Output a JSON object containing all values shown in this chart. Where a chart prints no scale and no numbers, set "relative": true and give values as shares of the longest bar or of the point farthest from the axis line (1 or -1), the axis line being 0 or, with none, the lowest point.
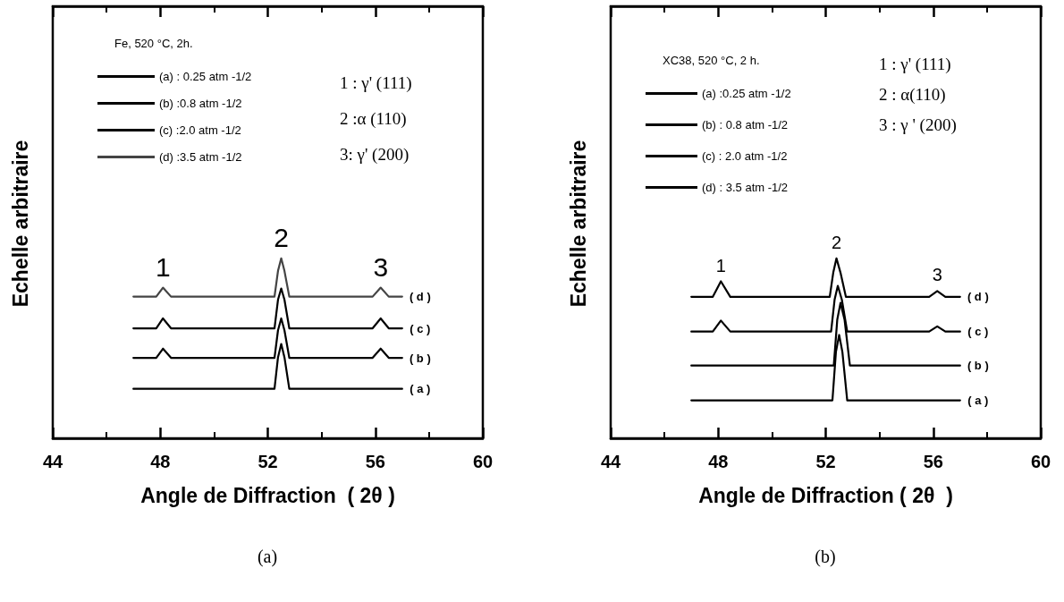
{
  "chart_data": [
    {
      "type": "line",
      "relative": true,
      "legend": "top left",
      "legend_title": "Fe, 520 °C, 2h.",
      "xlabel": "Angle de Diffraction  ( 2θ )",
      "ylabel": "Echelle arbitraire",
      "subtitle": "(a)",
      "xlim": [
        44,
        60
      ],
      "xticks": [
        44,
        48,
        52,
        56,
        60
      ],
      "series": [
        {
          "name": "(a) : 0.25 atm -1/2",
          "color": "#000000",
          "x": [
            47,
            52.25,
            52.38,
            52.5,
            52.62,
            52.8,
            57
          ],
          "values": [
            0.275,
            0.275,
            0.45,
            0.524,
            0.45,
            0.275,
            0.275
          ]
        },
        {
          "name": "(b) :0.8 atm -1/2",
          "color": "#000000",
          "x": [
            47,
            47.85,
            48.1,
            48.4,
            52.25,
            52.38,
            52.5,
            52.62,
            52.8,
            55.9,
            56.2,
            56.5,
            57
          ],
          "values": [
            0.447,
            0.447,
            0.498,
            0.447,
            0.447,
            0.6,
            0.666,
            0.6,
            0.447,
            0.447,
            0.498,
            0.447,
            0.447
          ]
        },
        {
          "name": "(c) :2.0 atm -1/2",
          "color": "#000000",
          "x": [
            47,
            47.85,
            48.1,
            48.4,
            52.25,
            52.38,
            52.5,
            52.62,
            52.8,
            55.9,
            56.2,
            56.5,
            57
          ],
          "values": [
            0.611,
            0.611,
            0.666,
            0.611,
            0.611,
            0.77,
            0.832,
            0.77,
            0.611,
            0.611,
            0.666,
            0.611,
            0.611
          ]
        },
        {
          "name": "(d) :3.5 atm -1/2",
          "color": "#444444",
          "x": [
            47,
            47.85,
            48.1,
            48.4,
            52.25,
            52.38,
            52.5,
            52.62,
            52.8,
            55.9,
            56.2,
            56.5,
            57
          ],
          "values": [
            0.787,
            0.787,
            0.837,
            0.787,
            0.787,
            0.93,
            1.0,
            0.93,
            0.787,
            0.787,
            0.837,
            0.787,
            0.787
          ]
        }
      ],
      "annotations": [
        "1 : γ' (111)",
        "2 :α (110)",
        "3: γ' (200)",
        "1",
        "2",
        "3",
        "( a )",
        "( b )",
        "( c )",
        "( d )"
      ]
    },
    {
      "type": "line",
      "relative": true,
      "legend": "top left",
      "legend_title": "XC38, 520 °C, 2 h.",
      "xlabel": "Angle de Diffraction ( 2θ  )",
      "ylabel": "Echelle arbitraire",
      "subtitle": "(b)",
      "xlim": [
        44,
        60
      ],
      "xticks": [
        44,
        48,
        52,
        56,
        60
      ],
      "series": [
        {
          "name": "(a) :0.25 atm -1/2",
          "color": "#000000",
          "x": [
            47,
            52.25,
            52.38,
            52.5,
            52.62,
            52.8,
            57
          ],
          "values": [
            0.211,
            0.211,
            0.48,
            0.574,
            0.48,
            0.211,
            0.211
          ]
        },
        {
          "name": "(b) : 0.8 atm -1/2",
          "color": "#000000",
          "x": [
            47,
            52.3,
            52.43,
            52.55,
            52.7,
            52.9,
            57
          ],
          "values": [
            0.404,
            0.404,
            0.66,
            0.752,
            0.66,
            0.404,
            0.404
          ]
        },
        {
          "name": "(c) : 2.0 atm -1/2",
          "color": "#000000",
          "x": [
            47,
            47.8,
            48.1,
            48.45,
            52.2,
            52.33,
            52.45,
            52.6,
            52.8,
            55.85,
            56.15,
            56.45,
            57
          ],
          "values": [
            0.593,
            0.593,
            0.654,
            0.593,
            0.593,
            0.77,
            0.847,
            0.77,
            0.593,
            0.593,
            0.622,
            0.593,
            0.593
          ]
        },
        {
          "name": "(d) : 3.5 atm -1/2",
          "color": "#000000",
          "x": [
            47,
            47.8,
            48.1,
            48.45,
            52.15,
            52.28,
            52.4,
            52.55,
            52.75,
            55.85,
            56.15,
            56.45,
            57
          ],
          "values": [
            0.786,
            0.786,
            0.872,
            0.786,
            0.786,
            0.92,
            1.0,
            0.92,
            0.786,
            0.786,
            0.818,
            0.786,
            0.786
          ]
        }
      ],
      "annotations": [
        "1 : γ' (111)",
        "2 : α(110)",
        "3 : γ ' (200)",
        "1",
        "2",
        "3",
        "( a )",
        "( b )",
        "( c )",
        "( d )"
      ]
    }
  ]
}
